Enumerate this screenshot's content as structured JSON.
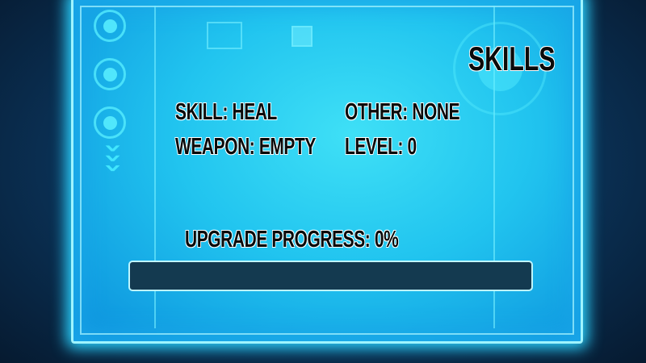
{
  "panel": {
    "title": "SKILLS",
    "stats": {
      "skill": "SKILL: HEAL",
      "other": "OTHER: NONE",
      "weapon": "WEAPON: EMPTY",
      "level": "LEVEL: 0"
    },
    "upgrade": {
      "label": "UPGRADE PROGRESS: 0%",
      "percent": 0
    }
  },
  "colors": {
    "panel": "#21c4ef",
    "bar": "#143a50",
    "glow": "#2ad2ff"
  }
}
